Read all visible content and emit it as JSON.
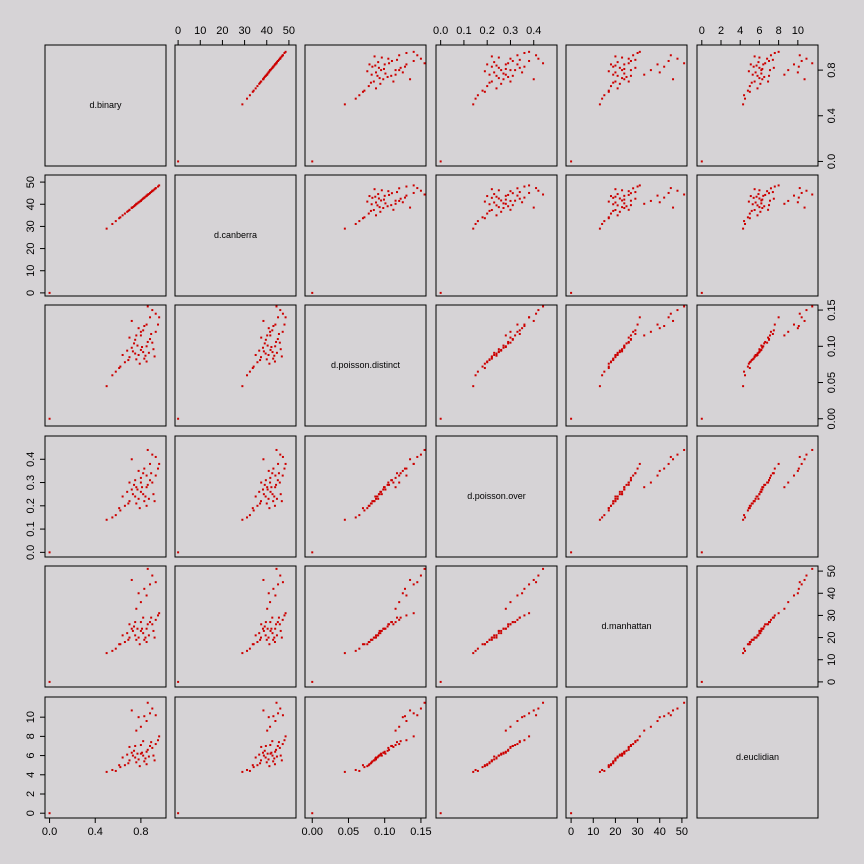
{
  "chart_data": {
    "type": "scatter_matrix",
    "color": "#cc0000",
    "variables": [
      {
        "name": "d.binary",
        "lim": [
          -0.04,
          1.02
        ],
        "ticks": [
          {
            "value": 0,
            "label": "0.0"
          },
          {
            "value": 0.4,
            "label": "0.4"
          },
          {
            "value": 0.8,
            "label": "0.8"
          }
        ],
        "values": [
          0,
          0.62,
          0.7,
          0.75,
          0.8,
          0.85,
          0.9,
          0.78,
          0.82,
          0.88,
          0.93,
          0.66,
          0.72,
          0.76,
          0.84,
          0.95,
          0.58,
          0.5,
          0.55,
          0.68,
          0.74,
          0.8,
          0.86,
          0.91,
          0.79,
          0.83,
          0.87,
          0.64,
          0.7,
          0.77,
          0.92,
          0.81,
          0.73,
          0.89,
          0.96,
          0.85,
          0.61,
          0.69,
          0.75,
          0.82,
          0.8,
          0.85,
          0.78,
          0.88,
          0.72,
          0.9,
          0.86,
          0.76,
          0.93,
          0.83
        ]
      },
      {
        "name": "d.canberra",
        "lim": [
          -1.4,
          53.2
        ],
        "ticks": [
          0,
          10,
          20,
          30,
          40,
          50
        ],
        "values": [
          0,
          34.1,
          37.4,
          39.5,
          41.7,
          43.8,
          45.9,
          40.8,
          42.6,
          45.0,
          47.2,
          35.8,
          38.3,
          40.0,
          43.4,
          48.0,
          32.4,
          29.0,
          31.1,
          36.6,
          39.1,
          41.6,
          44.2,
          46.3,
          41.2,
          42.9,
          44.6,
          35.0,
          37.5,
          40.4,
          46.8,
          42.1,
          38.7,
          45.5,
          48.5,
          43.7,
          33.7,
          37.0,
          39.6,
          42.5,
          41.5,
          43.9,
          40.9,
          45.1,
          38.5,
          46.1,
          44.4,
          40.2,
          47.3,
          43.0
        ]
      },
      {
        "name": "d.poisson.distinct",
        "lim": [
          -0.01,
          0.157
        ],
        "ticks": [
          {
            "value": 0,
            "label": "0.00"
          },
          0.05,
          {
            "value": 0.1,
            "label": "0.10"
          },
          0.15
        ],
        "values": [
          0,
          0.072,
          0.085,
          0.09,
          0.095,
          0.1,
          0.105,
          0.088,
          0.092,
          0.11,
          0.12,
          0.078,
          0.098,
          0.082,
          0.087,
          0.13,
          0.065,
          0.045,
          0.06,
          0.094,
          0.104,
          0.115,
          0.106,
          0.096,
          0.076,
          0.083,
          0.091,
          0.088,
          0.112,
          0.101,
          0.086,
          0.099,
          0.093,
          0.117,
          0.14,
          0.079,
          0.07,
          0.081,
          0.109,
          0.122,
          0.12,
          0.13,
          0.125,
          0.14,
          0.135,
          0.15,
          0.155,
          0.115,
          0.145,
          0.128
        ]
      },
      {
        "name": "d.poisson.over",
        "lim": [
          -0.02,
          0.5
        ],
        "ticks": [
          {
            "value": 0,
            "label": "0.0"
          },
          0.1,
          0.2,
          0.3,
          0.4
        ],
        "values": [
          0,
          0.18,
          0.22,
          0.24,
          0.26,
          0.28,
          0.3,
          0.23,
          0.25,
          0.31,
          0.33,
          0.2,
          0.27,
          0.21,
          0.24,
          0.36,
          0.16,
          0.14,
          0.15,
          0.26,
          0.29,
          0.32,
          0.29,
          0.25,
          0.19,
          0.22,
          0.23,
          0.24,
          0.3,
          0.27,
          0.22,
          0.28,
          0.25,
          0.34,
          0.38,
          0.2,
          0.19,
          0.21,
          0.31,
          0.34,
          0.3,
          0.33,
          0.35,
          0.38,
          0.4,
          0.42,
          0.44,
          0.28,
          0.41,
          0.36
        ]
      },
      {
        "name": "d.manhattan",
        "lim": [
          -2.3,
          52.3
        ],
        "ticks": [
          0,
          10,
          20,
          30,
          40,
          50
        ],
        "values": [
          0,
          17,
          20,
          21,
          23,
          24,
          26,
          20,
          22,
          27,
          28,
          18,
          24,
          19,
          20,
          30,
          15,
          13,
          14,
          22,
          25,
          27,
          26,
          23,
          17,
          19,
          21,
          21,
          26,
          24,
          20,
          24,
          23,
          29,
          31,
          18,
          17,
          19,
          27,
          29,
          36,
          39,
          40,
          44,
          46,
          48,
          51,
          33,
          45,
          42
        ]
      },
      {
        "name": "d.euclidian",
        "lim": [
          -0.5,
          12.1
        ],
        "ticks": [
          0,
          2,
          4,
          6,
          8,
          10
        ],
        "values": [
          0,
          4.8,
          5.5,
          5.8,
          6.2,
          6.4,
          6.8,
          5.6,
          6.0,
          7.0,
          7.2,
          5.0,
          6.3,
          5.3,
          5.7,
          7.6,
          4.4,
          4.3,
          4.5,
          6.1,
          6.5,
          7.1,
          6.6,
          6.0,
          4.9,
          5.4,
          5.9,
          5.8,
          6.9,
          6.2,
          5.5,
          6.3,
          6.0,
          7.4,
          8.0,
          5.1,
          5.0,
          5.2,
          7.0,
          7.5,
          9.0,
          9.6,
          10.0,
          10.4,
          10.7,
          10.9,
          11.5,
          8.6,
          10.2,
          10.1
        ]
      }
    ]
  }
}
